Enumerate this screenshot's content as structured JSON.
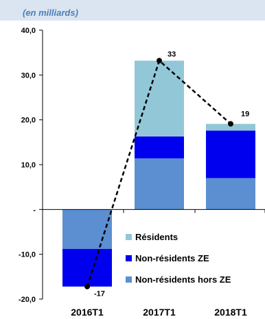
{
  "chart_data": {
    "type": "bar",
    "stacked": true,
    "unit_label": "(en milliards)",
    "categories": [
      "2016T1",
      "2017T1",
      "2018T1"
    ],
    "ylim": [
      -20,
      40
    ],
    "yticks": [
      {
        "value": 40,
        "label": "40,0"
      },
      {
        "value": 30,
        "label": "30,0"
      },
      {
        "value": 20,
        "label": "20,0"
      },
      {
        "value": 10,
        "label": "10,0"
      },
      {
        "value": 0,
        "label": "-"
      },
      {
        "value": -10,
        "label": "-10,0"
      },
      {
        "value": -20,
        "label": "-20,0"
      }
    ],
    "series": [
      {
        "name": "Non-résidents hors ZE",
        "color": "#5b8fd1",
        "values": [
          -8.8,
          11.4,
          7.0
        ]
      },
      {
        "name": "Non-résidents ZE",
        "color": "#0000ee",
        "values": [
          -8.4,
          4.9,
          10.6
        ]
      },
      {
        "name": "Résidents",
        "color": "#92c7d8",
        "values": [
          0.0,
          16.9,
          1.5
        ]
      }
    ],
    "total_line": {
      "style": "dashed",
      "color": "#000000",
      "values": [
        -17.2,
        33.2,
        19.1
      ],
      "labels": [
        "-17",
        "33",
        "19"
      ]
    },
    "legend": {
      "position": "bottom-right",
      "order": [
        "Résidents",
        "Non-résidents ZE",
        "Non-résidents hors ZE"
      ]
    },
    "grid": false
  }
}
